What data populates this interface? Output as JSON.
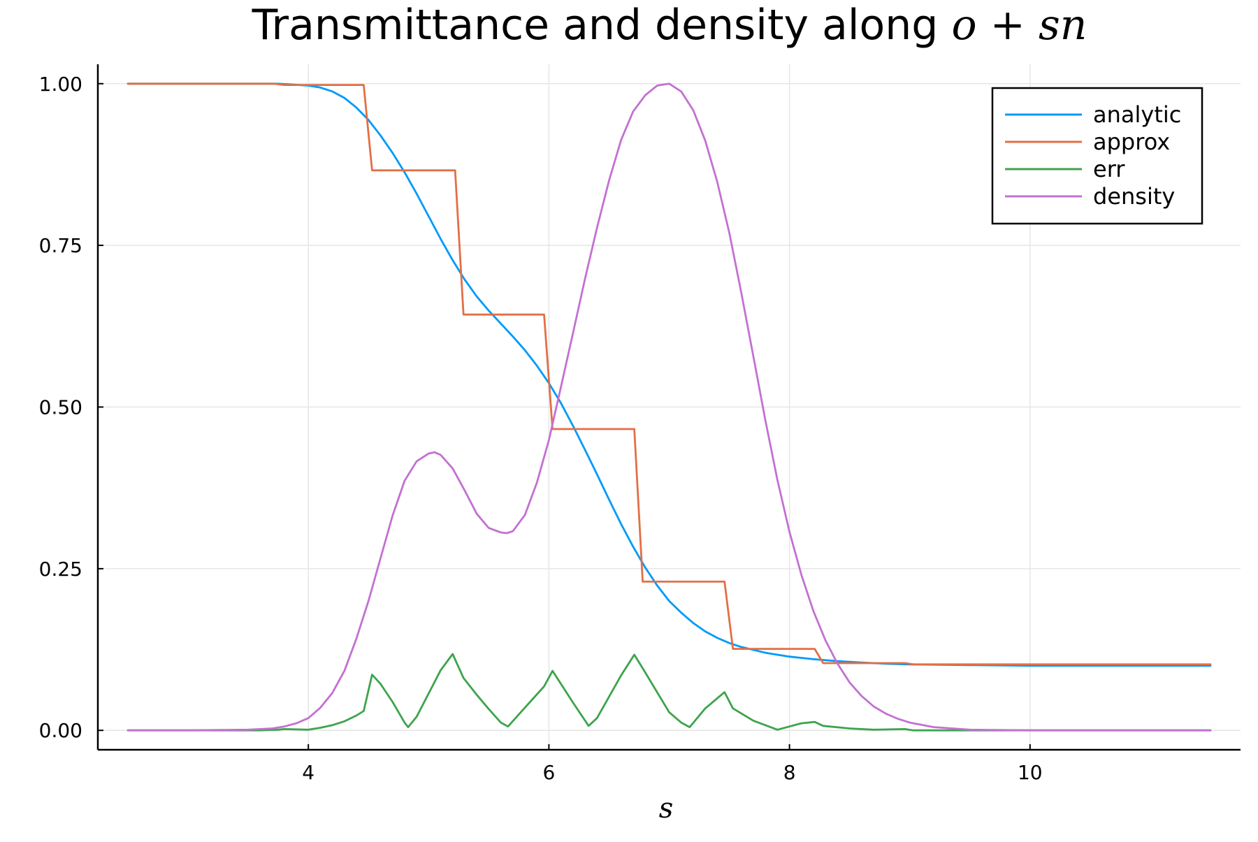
{
  "chart_data": {
    "type": "line",
    "title": "Transmittance and density along",
    "title_math": "o + sn",
    "xlabel": "s",
    "ylabel": "",
    "xlim": [
      2.25,
      11.75
    ],
    "ylim": [
      -0.03,
      1.03
    ],
    "xticks": [
      4,
      6,
      8,
      10
    ],
    "xtick_labels": [
      "4",
      "6",
      "8",
      "10"
    ],
    "yticks": [
      0,
      0.25,
      0.5,
      0.75,
      1.0
    ],
    "ytick_labels": [
      "0.00",
      "0.25",
      "0.50",
      "0.75",
      "1.00"
    ],
    "grid": true,
    "legend_position": "top-right",
    "series": [
      {
        "name": "analytic",
        "color": "#009af9",
        "x": [
          2.5,
          3.0,
          3.5,
          3.75,
          4.0,
          4.1,
          4.2,
          4.3,
          4.4,
          4.5,
          4.6,
          4.7,
          4.8,
          4.9,
          5.0,
          5.1,
          5.2,
          5.3,
          5.4,
          5.5,
          5.6,
          5.7,
          5.8,
          5.9,
          6.0,
          6.1,
          6.2,
          6.3,
          6.4,
          6.5,
          6.6,
          6.7,
          6.8,
          6.9,
          7.0,
          7.1,
          7.2,
          7.3,
          7.4,
          7.5,
          7.6,
          7.8,
          8.0,
          8.2,
          8.4,
          8.6,
          8.8,
          9.0,
          9.5,
          10.0,
          11.0,
          11.5
        ],
        "y": [
          1.0,
          1.0,
          1.0,
          1.0,
          0.997,
          0.994,
          0.988,
          0.978,
          0.963,
          0.944,
          0.92,
          0.893,
          0.863,
          0.83,
          0.795,
          0.76,
          0.727,
          0.697,
          0.671,
          0.649,
          0.629,
          0.609,
          0.588,
          0.564,
          0.537,
          0.506,
          0.471,
          0.434,
          0.396,
          0.357,
          0.319,
          0.284,
          0.252,
          0.224,
          0.2,
          0.182,
          0.166,
          0.153,
          0.143,
          0.135,
          0.129,
          0.12,
          0.114,
          0.11,
          0.107,
          0.105,
          0.103,
          0.102,
          0.101,
          0.1,
          0.1,
          0.1
        ]
      },
      {
        "name": "approx",
        "color": "#e26f46",
        "x": [
          2.5,
          3.72,
          3.8,
          4.46,
          4.53,
          5.22,
          5.29,
          5.96,
          6.03,
          6.71,
          6.78,
          7.46,
          7.53,
          8.21,
          8.28,
          8.96,
          9.03,
          11.5
        ],
        "y": [
          1.0,
          1.0,
          0.998,
          0.998,
          0.866,
          0.866,
          0.643,
          0.643,
          0.466,
          0.466,
          0.23,
          0.23,
          0.126,
          0.126,
          0.104,
          0.104,
          0.102,
          0.102
        ]
      },
      {
        "name": "err",
        "color": "#3da44d",
        "x": [
          2.5,
          3.6,
          3.75,
          3.8,
          4.0,
          4.1,
          4.2,
          4.3,
          4.4,
          4.46,
          4.53,
          4.6,
          4.7,
          4.8,
          4.83,
          4.9,
          5.0,
          5.1,
          5.2,
          5.29,
          5.4,
          5.5,
          5.6,
          5.66,
          5.8,
          5.96,
          6.03,
          6.2,
          6.33,
          6.4,
          6.6,
          6.71,
          6.78,
          7.0,
          7.1,
          7.17,
          7.3,
          7.46,
          7.53,
          7.7,
          7.9,
          8.1,
          8.21,
          8.28,
          8.5,
          8.7,
          8.96,
          9.03,
          9.5,
          10.0,
          11.5
        ],
        "y": [
          0.0,
          0.0,
          0.001,
          0.002,
          0.001,
          0.004,
          0.008,
          0.014,
          0.023,
          0.03,
          0.086,
          0.072,
          0.044,
          0.012,
          0.005,
          0.021,
          0.057,
          0.093,
          0.118,
          0.081,
          0.055,
          0.033,
          0.012,
          0.006,
          0.035,
          0.068,
          0.092,
          0.043,
          0.007,
          0.019,
          0.085,
          0.117,
          0.096,
          0.028,
          0.012,
          0.005,
          0.034,
          0.059,
          0.034,
          0.015,
          0.001,
          0.011,
          0.013,
          0.007,
          0.003,
          0.001,
          0.002,
          0.0,
          0.0,
          0.0,
          0.0
        ]
      },
      {
        "name": "density",
        "color": "#c271d2",
        "x": [
          2.5,
          3.0,
          3.5,
          3.7,
          3.8,
          3.9,
          4.0,
          4.1,
          4.2,
          4.3,
          4.4,
          4.5,
          4.6,
          4.7,
          4.8,
          4.9,
          5.0,
          5.05,
          5.1,
          5.2,
          5.3,
          5.4,
          5.5,
          5.6,
          5.65,
          5.7,
          5.8,
          5.9,
          6.0,
          6.1,
          6.2,
          6.3,
          6.4,
          6.5,
          6.6,
          6.7,
          6.8,
          6.9,
          7.0,
          7.1,
          7.2,
          7.3,
          7.4,
          7.5,
          7.6,
          7.7,
          7.8,
          7.9,
          8.0,
          8.1,
          8.2,
          8.3,
          8.4,
          8.5,
          8.6,
          8.7,
          8.8,
          8.9,
          9.0,
          9.2,
          9.5,
          10.0,
          10.5,
          11.0,
          11.5
        ],
        "y": [
          0.0,
          0.0,
          0.001,
          0.003,
          0.006,
          0.011,
          0.019,
          0.035,
          0.058,
          0.092,
          0.142,
          0.2,
          0.266,
          0.332,
          0.386,
          0.416,
          0.428,
          0.43,
          0.426,
          0.405,
          0.371,
          0.335,
          0.313,
          0.306,
          0.305,
          0.308,
          0.333,
          0.383,
          0.449,
          0.531,
          0.614,
          0.698,
          0.777,
          0.85,
          0.913,
          0.957,
          0.982,
          0.997,
          1.0,
          0.988,
          0.959,
          0.912,
          0.848,
          0.769,
          0.676,
          0.578,
          0.479,
          0.387,
          0.307,
          0.24,
          0.184,
          0.139,
          0.103,
          0.074,
          0.053,
          0.037,
          0.026,
          0.018,
          0.012,
          0.005,
          0.001,
          0.0,
          0.0,
          0.0,
          0.0
        ]
      }
    ]
  }
}
